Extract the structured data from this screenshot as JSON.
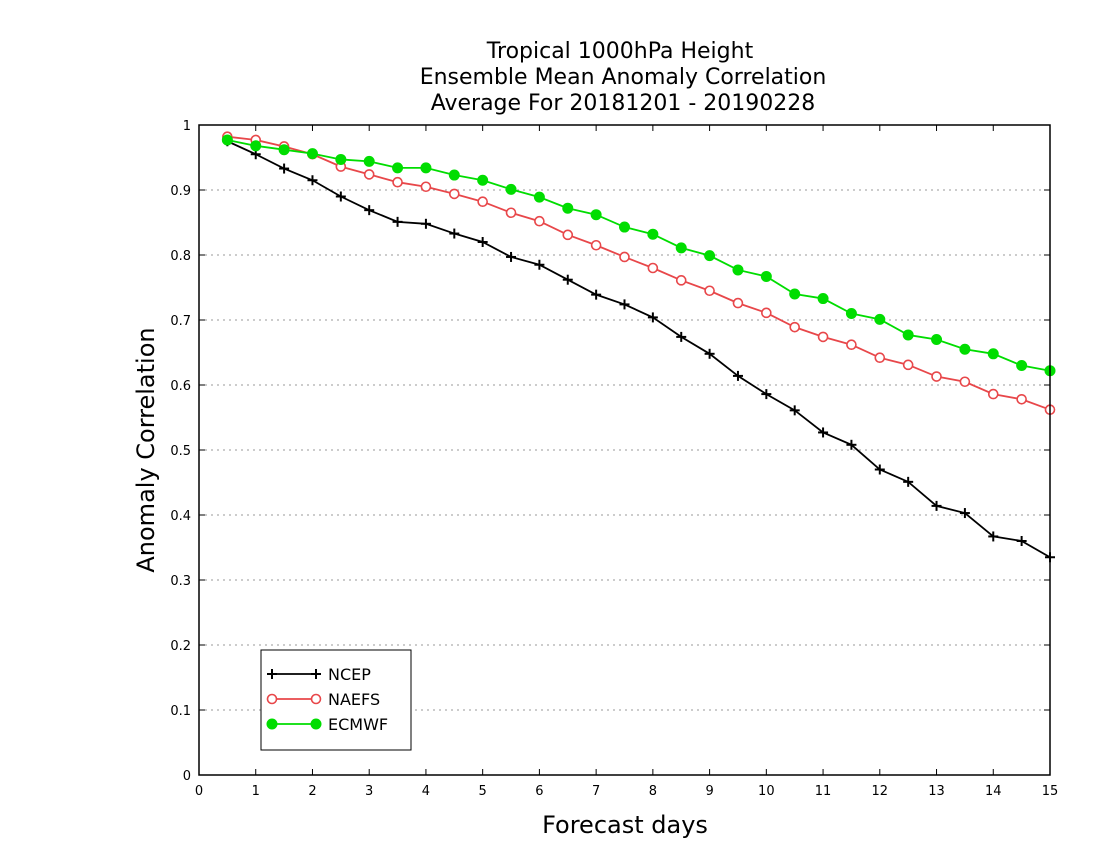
{
  "chart_data": {
    "type": "line",
    "title": [
      "Tropical 1000hPa Height",
      "Ensemble Mean Anomaly Correlation",
      "Average For 20181201 - 20190228"
    ],
    "xlabel": "Forecast days",
    "ylabel": "Anomaly Correlation",
    "xlim": [
      0,
      15
    ],
    "ylim": [
      0,
      1
    ],
    "xticks": [
      "0",
      "1",
      "2",
      "3",
      "4",
      "5",
      "6",
      "7",
      "8",
      "9",
      "10",
      "11",
      "12",
      "13",
      "14",
      "15"
    ],
    "yticks": [
      "0",
      "0.1",
      "0.2",
      "0.3",
      "0.4",
      "0.5",
      "0.6",
      "0.7",
      "0.8",
      "0.9",
      "1"
    ],
    "grid": "horizontal dotted",
    "legend_position": "bottom-left",
    "x": [
      0.5,
      1,
      1.5,
      2,
      2.5,
      3,
      3.5,
      4,
      4.5,
      5,
      5.5,
      6,
      6.5,
      7,
      7.5,
      8,
      8.5,
      9,
      9.5,
      10,
      10.5,
      11,
      11.5,
      12,
      12.5,
      13,
      13.5,
      14,
      14.5,
      15
    ],
    "series": [
      {
        "name": "NCEP",
        "color": "#000000",
        "marker": "plus",
        "values": [
          0.975,
          0.955,
          0.933,
          0.915,
          0.89,
          0.869,
          0.851,
          0.848,
          0.833,
          0.82,
          0.797,
          0.785,
          0.762,
          0.739,
          0.724,
          0.704,
          0.674,
          0.648,
          0.614,
          0.586,
          0.561,
          0.527,
          0.508,
          0.47,
          0.451,
          0.414,
          0.403,
          0.367,
          0.36,
          0.335
        ]
      },
      {
        "name": "NAEFS",
        "color": "#e8474a",
        "marker": "open-circle",
        "values": [
          0.982,
          0.977,
          0.967,
          0.955,
          0.936,
          0.924,
          0.912,
          0.905,
          0.894,
          0.882,
          0.865,
          0.852,
          0.831,
          0.815,
          0.797,
          0.78,
          0.761,
          0.745,
          0.726,
          0.711,
          0.689,
          0.674,
          0.662,
          0.642,
          0.631,
          0.613,
          0.605,
          0.586,
          0.578,
          0.562
        ]
      },
      {
        "name": "ECMWF",
        "color": "#00dd00",
        "marker": "filled-circle",
        "values": [
          0.977,
          0.968,
          0.962,
          0.956,
          0.947,
          0.944,
          0.934,
          0.934,
          0.923,
          0.915,
          0.901,
          0.889,
          0.872,
          0.862,
          0.843,
          0.832,
          0.811,
          0.799,
          0.777,
          0.767,
          0.74,
          0.733,
          0.71,
          0.701,
          0.677,
          0.67,
          0.655,
          0.648,
          0.63,
          0.622
        ]
      }
    ]
  }
}
